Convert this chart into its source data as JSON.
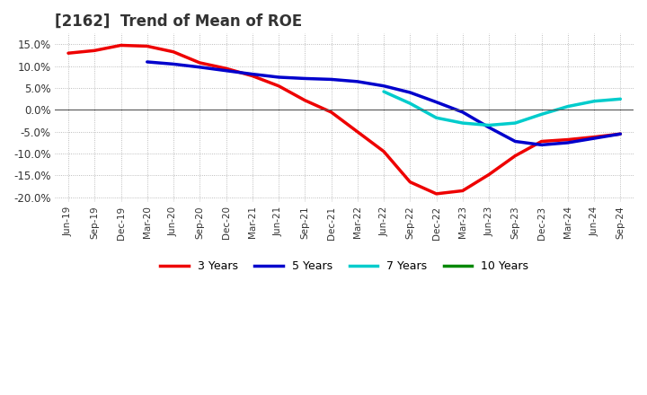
{
  "title": "[2162]  Trend of Mean of ROE",
  "ylim": [
    -0.21,
    0.175
  ],
  "yticks": [
    -0.2,
    -0.15,
    -0.1,
    -0.05,
    0.0,
    0.05,
    0.1,
    0.15
  ],
  "ytick_labels": [
    "-20.0%",
    "-15.0%",
    "-10.0%",
    "-5.0%",
    "0.0%",
    "5.0%",
    "10.0%",
    "15.0%"
  ],
  "background_color": "#ffffff",
  "plot_bg_color": "#ffffff",
  "grid_color": "#aaaaaa",
  "line_colors": {
    "3Y": "#ee0000",
    "5Y": "#0000cc",
    "7Y": "#00cccc",
    "10Y": "#008800"
  },
  "legend_labels": [
    "3 Years",
    "5 Years",
    "7 Years",
    "10 Years"
  ],
  "x_labels": [
    "Jun-19",
    "Sep-19",
    "Dec-19",
    "Mar-20",
    "Jun-20",
    "Sep-20",
    "Dec-20",
    "Mar-21",
    "Jun-21",
    "Sep-21",
    "Dec-21",
    "Mar-22",
    "Jun-22",
    "Sep-22",
    "Dec-22",
    "Mar-23",
    "Jun-23",
    "Sep-23",
    "Dec-23",
    "Mar-24",
    "Jun-24",
    "Sep-24"
  ],
  "series_3Y": [
    0.13,
    0.136,
    0.148,
    0.146,
    0.133,
    0.108,
    0.095,
    0.078,
    0.055,
    0.022,
    -0.005,
    -0.05,
    -0.095,
    -0.165,
    -0.192,
    -0.185,
    -0.148,
    -0.105,
    -0.072,
    -0.068,
    -0.062,
    -0.055
  ],
  "series_5Y": [
    null,
    null,
    null,
    0.11,
    0.105,
    0.098,
    0.09,
    0.082,
    0.075,
    0.072,
    0.07,
    0.065,
    0.055,
    0.04,
    0.018,
    -0.005,
    -0.04,
    -0.072,
    -0.08,
    -0.075,
    -0.065,
    -0.055
  ],
  "series_7Y": [
    null,
    null,
    null,
    null,
    null,
    null,
    null,
    null,
    null,
    null,
    null,
    null,
    0.042,
    0.015,
    -0.018,
    -0.03,
    -0.035,
    -0.03,
    -0.01,
    0.008,
    0.02,
    0.025
  ],
  "series_10Y": [
    null,
    null,
    null,
    null,
    null,
    null,
    null,
    null,
    null,
    null,
    null,
    null,
    null,
    null,
    null,
    null,
    null,
    null,
    null,
    null,
    null,
    null
  ]
}
